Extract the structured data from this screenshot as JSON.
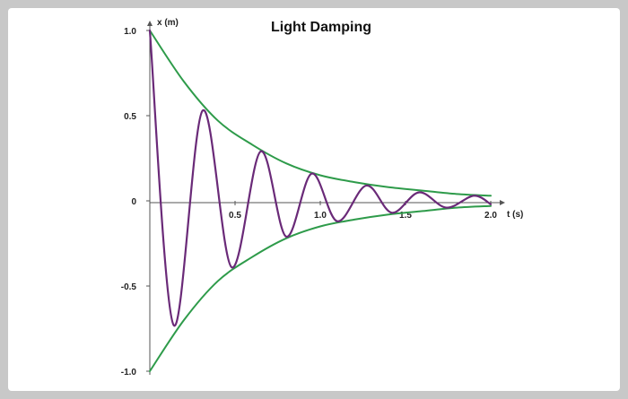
{
  "chart_data": {
    "type": "line",
    "title": "Light Damping",
    "xlabel": "t (s)",
    "ylabel": "x (m)",
    "xlim": [
      0,
      2.0
    ],
    "ylim": [
      -1.0,
      1.0
    ],
    "x_ticks": [
      {
        "value": 0.5,
        "label": "0.5"
      },
      {
        "value": 1.0,
        "label": "1.0"
      },
      {
        "value": 1.5,
        "label": "1.5"
      },
      {
        "value": 2.0,
        "label": "2.0"
      }
    ],
    "y_ticks": [
      {
        "value": 1.0,
        "label": "1.0"
      },
      {
        "value": 0.5,
        "label": "0.5"
      },
      {
        "value": 0,
        "label": "0"
      },
      {
        "value": -0.5,
        "label": "-0.5"
      },
      {
        "value": -1.0,
        "label": "-1.0"
      }
    ],
    "grid": false,
    "series": [
      {
        "role": "oscillation",
        "color": "#6a2a78",
        "points": [
          [
            0.0,
            1.0
          ],
          [
            0.14,
            -0.73
          ],
          [
            0.31,
            0.53
          ],
          [
            0.48,
            -0.39
          ],
          [
            0.65,
            0.29
          ],
          [
            0.8,
            -0.21
          ],
          [
            0.95,
            0.16
          ],
          [
            1.1,
            -0.12
          ],
          [
            1.27,
            0.09
          ],
          [
            1.42,
            -0.07
          ],
          [
            1.58,
            0.05
          ],
          [
            1.74,
            -0.04
          ],
          [
            1.9,
            0.03
          ],
          [
            2.0,
            -0.02
          ]
        ]
      },
      {
        "role": "upper-envelope",
        "color": "#2e9b4a",
        "points": [
          [
            0.0,
            1.0
          ],
          [
            0.2,
            0.7
          ],
          [
            0.4,
            0.47
          ],
          [
            0.6,
            0.33
          ],
          [
            0.8,
            0.22
          ],
          [
            1.0,
            0.15
          ],
          [
            1.2,
            0.11
          ],
          [
            1.4,
            0.08
          ],
          [
            1.6,
            0.06
          ],
          [
            1.8,
            0.04
          ],
          [
            2.0,
            0.03
          ]
        ]
      },
      {
        "role": "lower-envelope",
        "color": "#2e9b4a",
        "points": [
          [
            0.0,
            -1.0
          ],
          [
            0.2,
            -0.7
          ],
          [
            0.4,
            -0.47
          ],
          [
            0.6,
            -0.33
          ],
          [
            0.8,
            -0.22
          ],
          [
            1.0,
            -0.15
          ],
          [
            1.2,
            -0.11
          ],
          [
            1.4,
            -0.08
          ],
          [
            1.6,
            -0.06
          ],
          [
            1.8,
            -0.04
          ],
          [
            2.0,
            -0.03
          ]
        ]
      }
    ]
  }
}
